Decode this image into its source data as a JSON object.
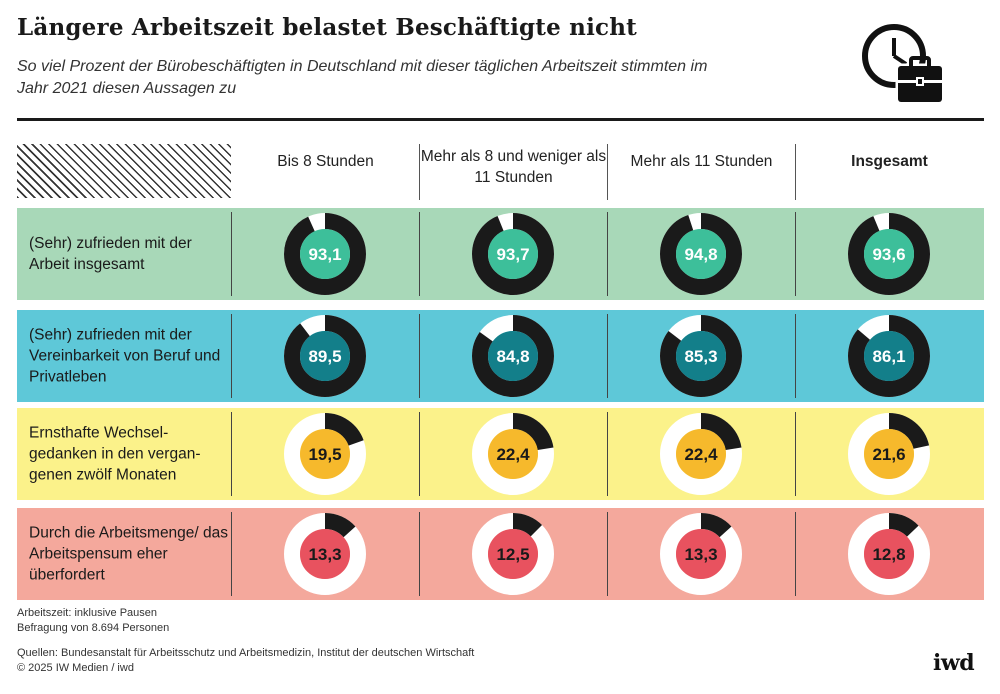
{
  "title": "Längere Arbeitszeit belastet Beschäftigte nicht",
  "subtitle": "So viel Prozent der Bürobeschäftigten in Deutschland mit dieser täglichen Arbeitszeit stimmten im Jahr 2021 diesen Aussagen zu",
  "icon": "clock-briefcase-icon",
  "columns": [
    "Bis 8 Stunden",
    "Mehr als 8 und weniger als 11 Stunden",
    "Mehr als 11 Stunden",
    "Insgesamt"
  ],
  "rows": [
    {
      "label": "(Sehr) zufrieden mit der Arbeit insgesamt",
      "values_text": [
        "93,1",
        "93,7",
        "94,8",
        "93,6"
      ]
    },
    {
      "label": "(Sehr) zufrieden mit der Vereinbarkeit von Beruf und Privatleben",
      "values_text": [
        "89,5",
        "84,8",
        "85,3",
        "86,1"
      ]
    },
    {
      "label": "Ernsthafte Wechsel-gedanken in den vergan-genen zwölf Monaten",
      "values_text": [
        "19,5",
        "22,4",
        "22,4",
        "21,6"
      ]
    },
    {
      "label": "Durch die Arbeitsmenge/ das Arbeitspensum eher überfordert",
      "values_text": [
        "13,3",
        "12,5",
        "13,3",
        "12,8"
      ]
    }
  ],
  "colors": {
    "row_backgrounds": [
      "#a8d8b8",
      "#5ec8d8",
      "#fbf28a",
      "#f4a89c"
    ],
    "center_fills": [
      "#3dbf9a",
      "#137f8a",
      "#f6b92c",
      "#e8525f"
    ],
    "ring_dark": "#1a1a1a",
    "ring_light": "#ffffff"
  },
  "chart_data": {
    "type": "donut-grid",
    "categories": [
      "Bis 8 Stunden",
      "Mehr als 8 und weniger als 11 Stunden",
      "Mehr als 11 Stunden",
      "Insgesamt"
    ],
    "series": [
      {
        "name": "(Sehr) zufrieden mit der Arbeit insgesamt",
        "values": [
          93.1,
          93.7,
          94.8,
          93.6
        ]
      },
      {
        "name": "(Sehr) zufrieden mit der Vereinbarkeit von Beruf und Privatleben",
        "values": [
          89.5,
          84.8,
          85.3,
          86.1
        ]
      },
      {
        "name": "Ernsthafte Wechselgedanken in den vergangenen zwölf Monaten",
        "values": [
          19.5,
          22.4,
          22.4,
          21.6
        ]
      },
      {
        "name": "Durch die Arbeitsmenge/ das Arbeitspensum eher überfordert",
        "values": [
          13.3,
          12.5,
          13.3,
          12.8
        ]
      }
    ],
    "unit": "Prozent",
    "ylim": [
      0,
      100
    ]
  },
  "notes": {
    "line1": "Arbeitszeit: inklusive Pausen",
    "line2": "Befragung von 8.694 Personen",
    "line3": "Quellen: Bundesanstalt für Arbeitsschutz und Arbeitsmedizin, Institut der deutschen Wirtschaft",
    "line4": "© 2025 IW Medien / iwd"
  },
  "brand": "iwd"
}
